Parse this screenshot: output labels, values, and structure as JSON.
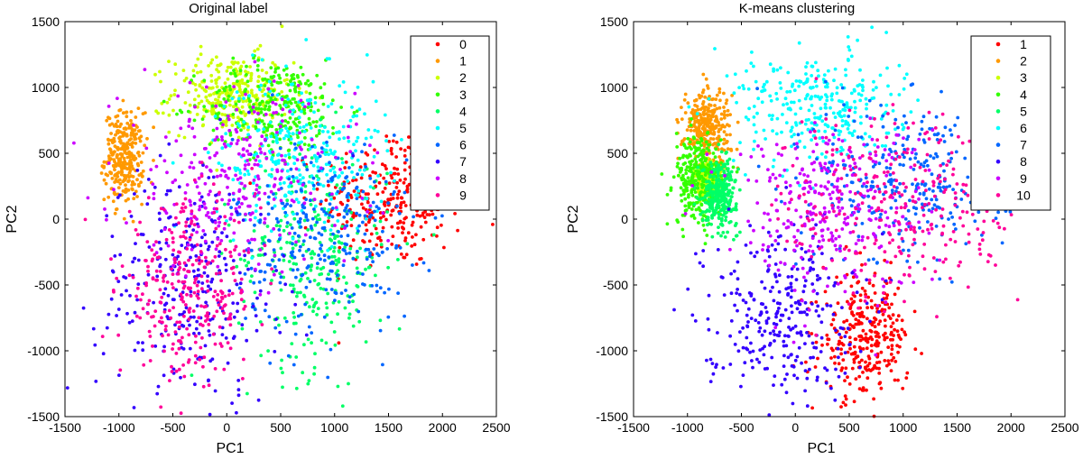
{
  "chart_data": [
    {
      "type": "scatter",
      "title": "Original label",
      "xlabel": "PC1",
      "ylabel": "PC2",
      "xlim": [
        -1500,
        2500
      ],
      "ylim": [
        -1500,
        1500
      ],
      "xticks": [
        -1500,
        -1000,
        -500,
        0,
        500,
        1000,
        1500,
        2000,
        2500
      ],
      "yticks": [
        -1500,
        -1000,
        -500,
        0,
        500,
        1000,
        1500
      ],
      "grid": false,
      "legend_position": "top-right",
      "legend": [
        {
          "label": "0",
          "color": "#ff0000"
        },
        {
          "label": "1",
          "color": "#ff9900"
        },
        {
          "label": "2",
          "color": "#ccff00"
        },
        {
          "label": "3",
          "color": "#33ff00"
        },
        {
          "label": "4",
          "color": "#00ff66"
        },
        {
          "label": "5",
          "color": "#00ffff"
        },
        {
          "label": "6",
          "color": "#0066ff"
        },
        {
          "label": "7",
          "color": "#3300ff"
        },
        {
          "label": "8",
          "color": "#cc00ff"
        },
        {
          "label": "9",
          "color": "#ff0099"
        }
      ],
      "clusters": [
        {
          "label": "0",
          "color": "#ff0000",
          "cx": 1550,
          "cy": 150,
          "sx": 330,
          "sy": 260
        },
        {
          "label": "1",
          "color": "#ff9900",
          "cx": -950,
          "cy": 470,
          "sx": 90,
          "sy": 170
        },
        {
          "label": "2",
          "color": "#ccff00",
          "cx": 50,
          "cy": 950,
          "sx": 280,
          "sy": 150
        },
        {
          "label": "3",
          "color": "#33ff00",
          "cx": 450,
          "cy": 850,
          "sx": 330,
          "sy": 180
        },
        {
          "label": "4",
          "color": "#00ff66",
          "cx": 800,
          "cy": -300,
          "sx": 350,
          "sy": 420
        },
        {
          "label": "5",
          "color": "#00ffff",
          "cx": 700,
          "cy": 500,
          "sx": 400,
          "sy": 300
        },
        {
          "label": "6",
          "color": "#0066ff",
          "cx": 900,
          "cy": -100,
          "sx": 420,
          "sy": 380
        },
        {
          "label": "7",
          "color": "#3300ff",
          "cx": -350,
          "cy": -500,
          "sx": 420,
          "sy": 450
        },
        {
          "label": "8",
          "color": "#cc00ff",
          "cx": 100,
          "cy": 300,
          "sx": 550,
          "sy": 350
        },
        {
          "label": "9",
          "color": "#ff0099",
          "cx": -350,
          "cy": -550,
          "sx": 320,
          "sy": 330
        }
      ]
    },
    {
      "type": "scatter",
      "title": "K-means clustering",
      "xlabel": "PC1",
      "ylabel": "PC2",
      "xlim": [
        -1500,
        2500
      ],
      "ylim": [
        -1500,
        1500
      ],
      "xticks": [
        -1500,
        -1000,
        -500,
        0,
        500,
        1000,
        1500,
        2000,
        2500
      ],
      "yticks": [
        -1500,
        -1000,
        -500,
        0,
        500,
        1000,
        1500
      ],
      "grid": false,
      "legend_position": "top-right",
      "legend": [
        {
          "label": "1",
          "color": "#ff0000"
        },
        {
          "label": "2",
          "color": "#ff9900"
        },
        {
          "label": "3",
          "color": "#ccff00"
        },
        {
          "label": "4",
          "color": "#33ff00"
        },
        {
          "label": "5",
          "color": "#00ff66"
        },
        {
          "label": "6",
          "color": "#00ffff"
        },
        {
          "label": "7",
          "color": "#0066ff"
        },
        {
          "label": "8",
          "color": "#3300ff"
        },
        {
          "label": "9",
          "color": "#cc00ff"
        },
        {
          "label": "10",
          "color": "#ff0099"
        }
      ],
      "clusters": [
        {
          "label": "1",
          "color": "#ff0000",
          "cx": 650,
          "cy": -900,
          "sx": 200,
          "sy": 230
        },
        {
          "label": "2",
          "color": "#ff9900",
          "cx": -820,
          "cy": 700,
          "sx": 110,
          "sy": 150
        },
        {
          "label": "3",
          "color": "#ccff00",
          "cx": -800,
          "cy": 300,
          "sx": 60,
          "sy": 60
        },
        {
          "label": "4",
          "color": "#33ff00",
          "cx": -900,
          "cy": 300,
          "sx": 110,
          "sy": 170
        },
        {
          "label": "5",
          "color": "#00ff66",
          "cx": -700,
          "cy": 200,
          "sx": 80,
          "sy": 120
        },
        {
          "label": "6",
          "color": "#00ffff",
          "cx": 200,
          "cy": 850,
          "sx": 380,
          "sy": 220
        },
        {
          "label": "7",
          "color": "#0066ff",
          "cx": 1100,
          "cy": 300,
          "sx": 450,
          "sy": 320
        },
        {
          "label": "8",
          "color": "#3300ff",
          "cx": -150,
          "cy": -700,
          "sx": 350,
          "sy": 320
        },
        {
          "label": "9",
          "color": "#cc00ff",
          "cx": 300,
          "cy": 100,
          "sx": 450,
          "sy": 330
        },
        {
          "label": "10",
          "color": "#ff0099",
          "cx": 1000,
          "cy": 100,
          "sx": 550,
          "sy": 380
        }
      ]
    }
  ]
}
